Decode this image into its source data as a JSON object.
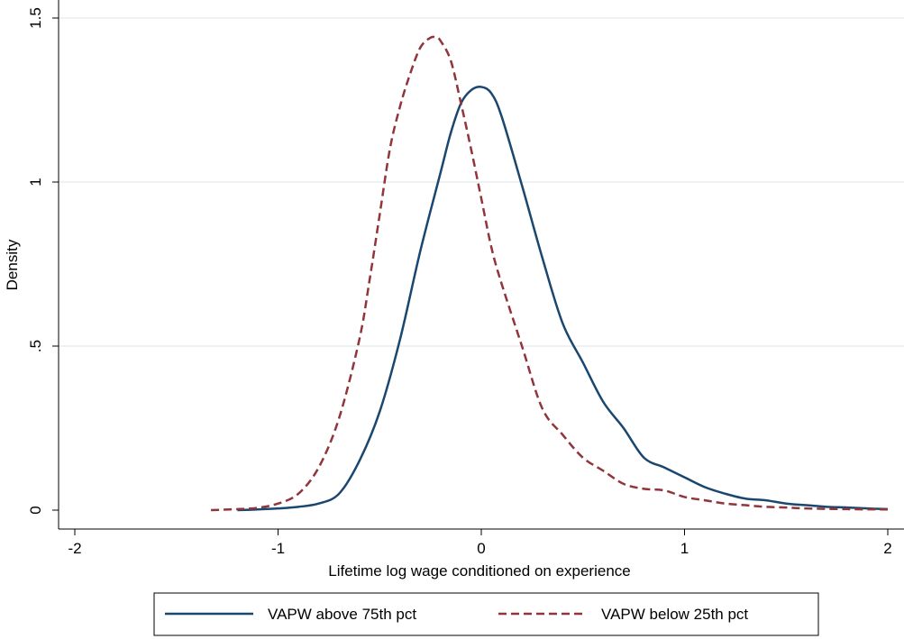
{
  "chart_data": {
    "type": "line",
    "xlabel": "Lifetime log wage conditioned on experience",
    "ylabel": "Density",
    "xlim": [
      -2,
      2
    ],
    "ylim": [
      0,
      1.5
    ],
    "x_ticks": [
      -2,
      -1,
      0,
      1,
      2
    ],
    "x_tick_labels": [
      "-2",
      "-1",
      "0",
      "1",
      "2"
    ],
    "y_ticks": [
      0,
      0.5,
      1,
      1.5
    ],
    "y_tick_labels": [
      "0",
      ".5",
      "1",
      "1.5"
    ],
    "grid": "horizontal",
    "legend_position": "bottom",
    "series": [
      {
        "name": "VAPW above 75th pct",
        "color": "#1a476f",
        "style": "solid",
        "x": [
          -1.2,
          -1.1,
          -1.0,
          -0.9,
          -0.8,
          -0.7,
          -0.6,
          -0.5,
          -0.4,
          -0.3,
          -0.2,
          -0.15,
          -0.1,
          -0.05,
          0.0,
          0.05,
          0.1,
          0.2,
          0.3,
          0.4,
          0.5,
          0.6,
          0.7,
          0.8,
          0.9,
          1.0,
          1.1,
          1.2,
          1.3,
          1.4,
          1.5,
          1.6,
          1.7,
          1.8,
          1.9,
          2.0
        ],
        "y": [
          0.0,
          0.002,
          0.005,
          0.01,
          0.02,
          0.05,
          0.15,
          0.3,
          0.52,
          0.79,
          1.03,
          1.15,
          1.24,
          1.28,
          1.29,
          1.27,
          1.2,
          0.99,
          0.77,
          0.57,
          0.45,
          0.33,
          0.25,
          0.16,
          0.13,
          0.1,
          0.07,
          0.05,
          0.035,
          0.03,
          0.02,
          0.015,
          0.01,
          0.008,
          0.005,
          0.003
        ]
      },
      {
        "name": "VAPW below 25th pct",
        "color": "#90353b",
        "style": "dashed",
        "x": [
          -1.33,
          -1.2,
          -1.1,
          -1.0,
          -0.9,
          -0.8,
          -0.7,
          -0.6,
          -0.55,
          -0.5,
          -0.45,
          -0.4,
          -0.35,
          -0.3,
          -0.25,
          -0.22,
          -0.2,
          -0.15,
          -0.1,
          -0.05,
          0.0,
          0.05,
          0.1,
          0.2,
          0.3,
          0.4,
          0.5,
          0.6,
          0.7,
          0.8,
          0.9,
          1.0,
          1.1,
          1.2,
          1.3,
          1.4,
          1.5,
          1.6,
          1.8,
          2.0
        ],
        "y": [
          0.0,
          0.003,
          0.007,
          0.02,
          0.05,
          0.13,
          0.28,
          0.52,
          0.7,
          0.9,
          1.1,
          1.23,
          1.33,
          1.41,
          1.44,
          1.44,
          1.43,
          1.37,
          1.24,
          1.1,
          0.95,
          0.8,
          0.69,
          0.5,
          0.31,
          0.23,
          0.16,
          0.12,
          0.08,
          0.065,
          0.06,
          0.04,
          0.03,
          0.02,
          0.015,
          0.01,
          0.008,
          0.005,
          0.003,
          0.002
        ]
      }
    ]
  }
}
